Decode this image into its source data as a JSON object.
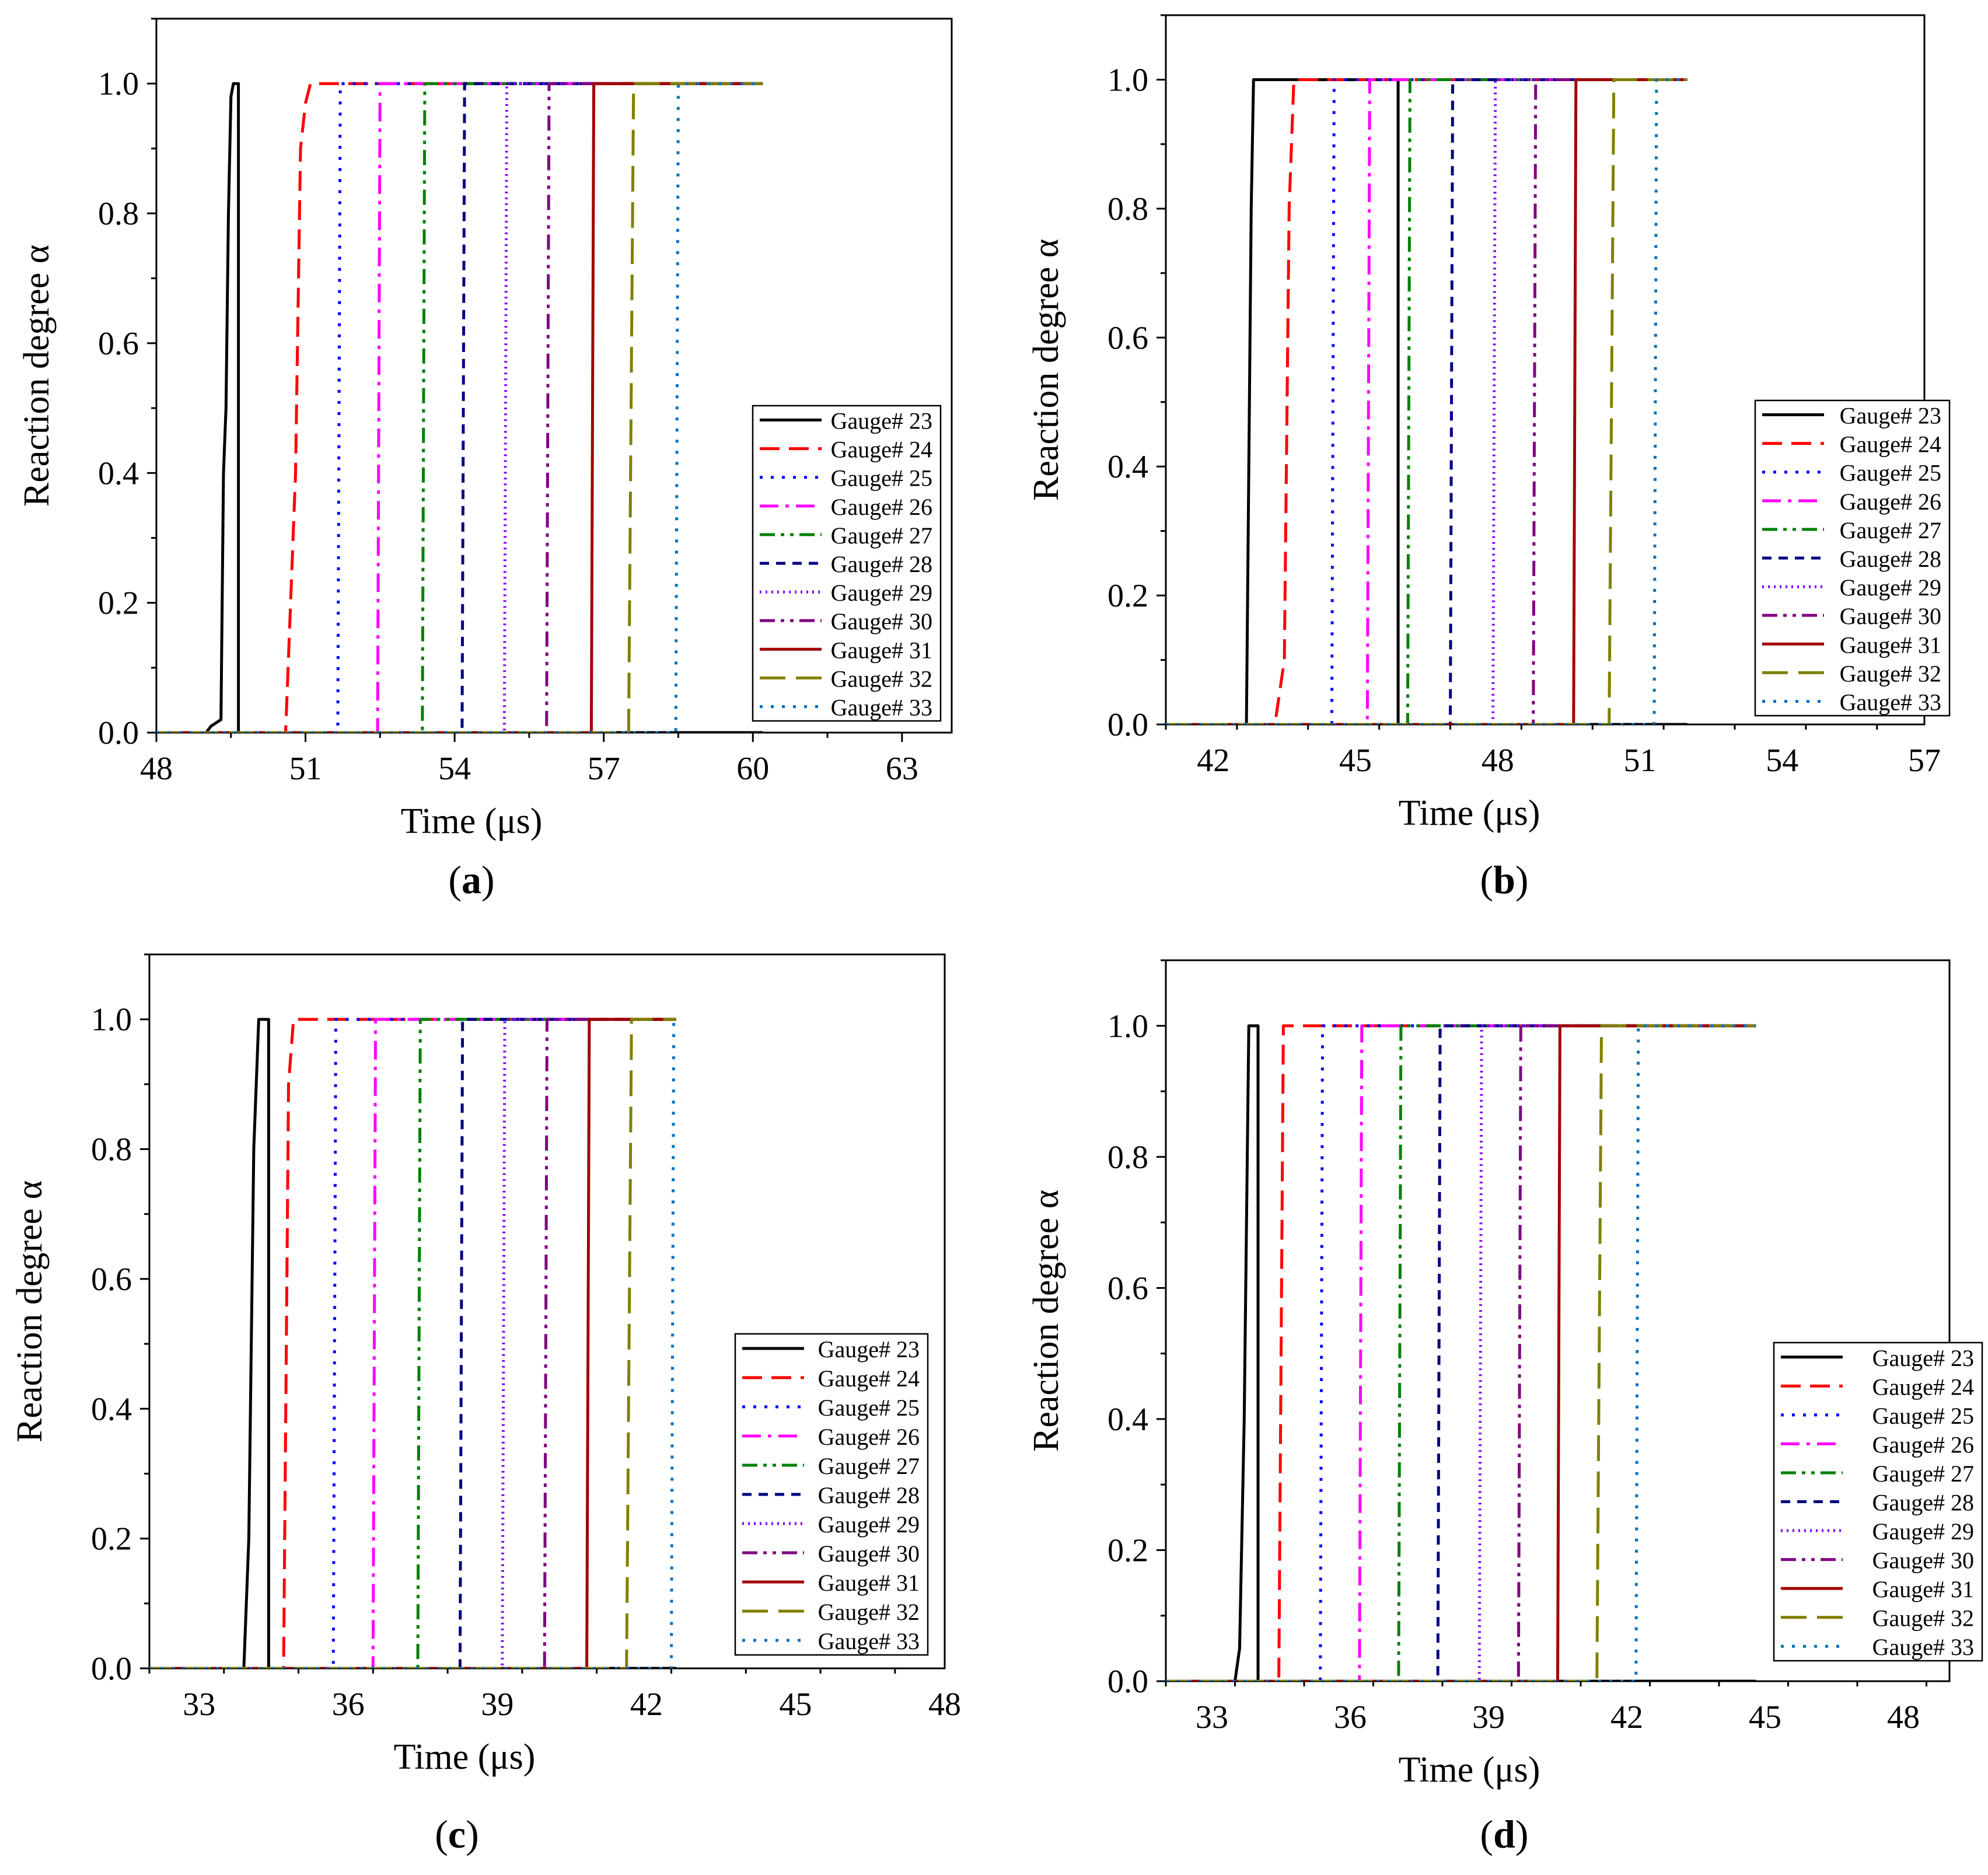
{
  "figure": {
    "legend_labels": [
      "Gauge# 23",
      "Gauge# 24",
      "Gauge# 25",
      "Gauge# 26",
      "Gauge# 27",
      "Gauge# 28",
      "Gauge# 29",
      "Gauge# 30",
      "Gauge# 31",
      "Gauge# 32",
      "Gauge# 33"
    ],
    "series_colors": [
      "#000000",
      "#ff0000",
      "#0000ff",
      "#ff00ff",
      "#008000",
      "#000080",
      "#8000ff",
      "#800080",
      "#a00000",
      "#808000",
      "#0070c0"
    ],
    "series_styles": [
      "solid",
      "dash",
      "dot",
      "dashdot",
      "dashdotdot",
      "shortdash",
      "shortdot",
      "dashdotdot",
      "solid",
      "longdash",
      "dot"
    ]
  },
  "chart_data": [
    {
      "type": "line",
      "panel_label": "(a)",
      "xlabel": "Time (μs)",
      "ylabel": "Reaction degree α",
      "xlim": [
        48,
        64
      ],
      "ylim": [
        0,
        1.1
      ],
      "xticks": [
        48,
        51,
        54,
        57,
        60,
        63
      ],
      "yticks": [
        0.0,
        0.2,
        0.4,
        0.6,
        0.8,
        1.0
      ],
      "tick_labels_x": [
        "48",
        "51",
        "54",
        "57",
        "60",
        "63"
      ],
      "tick_labels_y": [
        "0.0",
        "0.2",
        "0.4",
        "0.6",
        "0.8",
        "1.0"
      ],
      "x_end": 60.2,
      "series": [
        {
          "name": "Gauge# 23",
          "x": [
            48.0,
            49.0,
            49.1,
            49.3,
            49.35,
            49.4,
            49.45,
            49.5,
            49.55,
            49.6,
            49.65,
            49.65,
            60.2
          ],
          "y": [
            0,
            0,
            0.01,
            0.02,
            0.4,
            0.5,
            0.8,
            0.98,
            1.0,
            1.0,
            1.0,
            0,
            0
          ]
        },
        {
          "name": "Gauge# 24",
          "x": [
            48.0,
            50.6,
            50.8,
            50.9,
            51.0,
            51.1,
            60.2
          ],
          "y": [
            0,
            0,
            0.4,
            0.9,
            0.97,
            1.0,
            1.0
          ]
        },
        {
          "name": "Gauge# 25",
          "x": [
            48.0,
            51.65,
            51.7,
            60.2
          ],
          "y": [
            0,
            0,
            1.0,
            1.0
          ]
        },
        {
          "name": "Gauge# 26",
          "x": [
            48.0,
            52.45,
            52.5,
            60.2
          ],
          "y": [
            0,
            0,
            1.0,
            1.0
          ]
        },
        {
          "name": "Gauge# 27",
          "x": [
            48.0,
            53.35,
            53.4,
            60.2
          ],
          "y": [
            0,
            0,
            1.0,
            1.0
          ]
        },
        {
          "name": "Gauge# 28",
          "x": [
            48.0,
            54.15,
            54.2,
            60.2
          ],
          "y": [
            0,
            0,
            1.0,
            1.0
          ]
        },
        {
          "name": "Gauge# 29",
          "x": [
            48.0,
            55.0,
            55.05,
            60.2
          ],
          "y": [
            0,
            0,
            1.0,
            1.0
          ]
        },
        {
          "name": "Gauge# 30",
          "x": [
            48.0,
            55.85,
            55.9,
            60.2
          ],
          "y": [
            0,
            0,
            1.0,
            1.0
          ]
        },
        {
          "name": "Gauge# 31",
          "x": [
            48.0,
            56.75,
            56.8,
            60.2
          ],
          "y": [
            0,
            0,
            1.0,
            1.0
          ]
        },
        {
          "name": "Gauge# 32",
          "x": [
            48.0,
            57.5,
            57.6,
            60.2
          ],
          "y": [
            0,
            0,
            1.0,
            1.0
          ]
        },
        {
          "name": "Gauge# 33",
          "x": [
            48.0,
            58.45,
            58.5,
            60.2
          ],
          "y": [
            0,
            0,
            1.0,
            1.0
          ]
        }
      ]
    },
    {
      "type": "line",
      "panel_label": "(b)",
      "xlabel": "Time (μs)",
      "ylabel": "Reaction degree α",
      "xlim": [
        41,
        57
      ],
      "ylim": [
        0,
        1.1
      ],
      "xticks": [
        42,
        45,
        48,
        51,
        54,
        57
      ],
      "yticks": [
        0.0,
        0.2,
        0.4,
        0.6,
        0.8,
        1.0
      ],
      "tick_labels_x": [
        "42",
        "45",
        "48",
        "51",
        "54",
        "57"
      ],
      "tick_labels_y": [
        "0.0",
        "0.2",
        "0.4",
        "0.6",
        "0.8",
        "1.0"
      ],
      "x_end": 52.0,
      "series": [
        {
          "name": "Gauge# 23",
          "x": [
            41.0,
            42.7,
            42.75,
            42.8,
            42.85,
            45.9,
            45.9,
            52.0
          ],
          "y": [
            0,
            0,
            0.4,
            0.8,
            1.0,
            1.0,
            0,
            0
          ]
        },
        {
          "name": "Gauge# 24",
          "x": [
            41.0,
            43.3,
            43.5,
            43.6,
            43.7,
            52.0
          ],
          "y": [
            0,
            0,
            0.1,
            0.8,
            1.0,
            1.0
          ]
        },
        {
          "name": "Gauge# 25",
          "x": [
            41.0,
            44.5,
            44.55,
            52.0
          ],
          "y": [
            0,
            0,
            1.0,
            1.0
          ]
        },
        {
          "name": "Gauge# 26",
          "x": [
            41.0,
            45.25,
            45.3,
            52.0
          ],
          "y": [
            0,
            0,
            1.0,
            1.0
          ]
        },
        {
          "name": "Gauge# 27",
          "x": [
            41.0,
            46.1,
            46.15,
            52.0
          ],
          "y": [
            0,
            0,
            1.0,
            1.0
          ]
        },
        {
          "name": "Gauge# 28",
          "x": [
            41.0,
            47.0,
            47.05,
            52.0
          ],
          "y": [
            0,
            0,
            1.0,
            1.0
          ]
        },
        {
          "name": "Gauge# 29",
          "x": [
            41.0,
            47.9,
            47.95,
            52.0
          ],
          "y": [
            0,
            0,
            1.0,
            1.0
          ]
        },
        {
          "name": "Gauge# 30",
          "x": [
            41.0,
            48.75,
            48.8,
            52.0
          ],
          "y": [
            0,
            0,
            1.0,
            1.0
          ]
        },
        {
          "name": "Gauge# 31",
          "x": [
            41.0,
            49.6,
            49.65,
            52.0
          ],
          "y": [
            0,
            0,
            1.0,
            1.0
          ]
        },
        {
          "name": "Gauge# 32",
          "x": [
            41.0,
            50.35,
            50.45,
            52.0
          ],
          "y": [
            0,
            0,
            1.0,
            1.0
          ]
        },
        {
          "name": "Gauge# 33",
          "x": [
            41.0,
            51.3,
            51.35,
            52.0
          ],
          "y": [
            0,
            0,
            1.0,
            1.0
          ]
        }
      ]
    },
    {
      "type": "line",
      "panel_label": "(c)",
      "xlabel": "Time (μs)",
      "ylabel": "Reaction degree α",
      "xlim": [
        32,
        48
      ],
      "ylim": [
        0,
        1.1
      ],
      "xticks": [
        33,
        36,
        39,
        42,
        45,
        48
      ],
      "yticks": [
        0.0,
        0.2,
        0.4,
        0.6,
        0.8,
        1.0
      ],
      "tick_labels_x": [
        "33",
        "36",
        "39",
        "42",
        "45",
        "48"
      ],
      "tick_labels_y": [
        "0.0",
        "0.2",
        "0.4",
        "0.6",
        "0.8",
        "1.0"
      ],
      "x_end": 42.6,
      "series": [
        {
          "name": "Gauge# 23",
          "x": [
            32.0,
            33.9,
            34.0,
            34.1,
            34.2,
            34.4,
            34.4,
            42.6
          ],
          "y": [
            0,
            0,
            0.2,
            0.8,
            1.0,
            1.0,
            0,
            0
          ]
        },
        {
          "name": "Gauge# 24",
          "x": [
            32.0,
            34.7,
            34.8,
            34.9,
            42.6
          ],
          "y": [
            0,
            0,
            0.9,
            1.0,
            1.0
          ]
        },
        {
          "name": "Gauge# 25",
          "x": [
            32.0,
            35.7,
            35.75,
            42.6
          ],
          "y": [
            0,
            0,
            1.0,
            1.0
          ]
        },
        {
          "name": "Gauge# 26",
          "x": [
            32.0,
            36.5,
            36.55,
            42.6
          ],
          "y": [
            0,
            0,
            1.0,
            1.0
          ]
        },
        {
          "name": "Gauge# 27",
          "x": [
            32.0,
            37.4,
            37.45,
            42.6
          ],
          "y": [
            0,
            0,
            1.0,
            1.0
          ]
        },
        {
          "name": "Gauge# 28",
          "x": [
            32.0,
            38.25,
            38.3,
            42.6
          ],
          "y": [
            0,
            0,
            1.0,
            1.0
          ]
        },
        {
          "name": "Gauge# 29",
          "x": [
            32.0,
            39.1,
            39.15,
            42.6
          ],
          "y": [
            0,
            0,
            1.0,
            1.0
          ]
        },
        {
          "name": "Gauge# 30",
          "x": [
            32.0,
            39.95,
            40.0,
            42.6
          ],
          "y": [
            0,
            0,
            1.0,
            1.0
          ]
        },
        {
          "name": "Gauge# 31",
          "x": [
            32.0,
            40.8,
            40.85,
            42.6
          ],
          "y": [
            0,
            0,
            1.0,
            1.0
          ]
        },
        {
          "name": "Gauge# 32",
          "x": [
            32.0,
            41.6,
            41.7,
            42.6
          ],
          "y": [
            0,
            0,
            1.0,
            1.0
          ]
        },
        {
          "name": "Gauge# 33",
          "x": [
            32.0,
            42.5,
            42.55,
            42.6
          ],
          "y": [
            0,
            0,
            1.0,
            1.0
          ]
        }
      ]
    },
    {
      "type": "line",
      "panel_label": "(d)",
      "xlabel": "Time (μs)",
      "ylabel": "Reaction degree α",
      "xlim": [
        32,
        49
      ],
      "ylim": [
        0,
        1.1
      ],
      "xticks": [
        33,
        36,
        39,
        42,
        45,
        48
      ],
      "yticks": [
        0.0,
        0.2,
        0.4,
        0.6,
        0.8,
        1.0
      ],
      "tick_labels_x": [
        "33",
        "36",
        "39",
        "42",
        "45",
        "48"
      ],
      "tick_labels_y": [
        "0.0",
        "0.2",
        "0.4",
        "0.6",
        "0.8",
        "1.0"
      ],
      "x_end": 44.8,
      "series": [
        {
          "name": "Gauge# 23",
          "x": [
            32.0,
            33.5,
            33.6,
            33.7,
            33.8,
            34.0,
            34.0,
            44.8
          ],
          "y": [
            0,
            0,
            0.05,
            0.4,
            1.0,
            1.0,
            0,
            0
          ]
        },
        {
          "name": "Gauge# 24",
          "x": [
            32.0,
            34.45,
            34.55,
            44.8
          ],
          "y": [
            0,
            0,
            1.0,
            1.0
          ]
        },
        {
          "name": "Gauge# 25",
          "x": [
            32.0,
            35.35,
            35.4,
            44.8
          ],
          "y": [
            0,
            0,
            1.0,
            1.0
          ]
        },
        {
          "name": "Gauge# 26",
          "x": [
            32.0,
            36.2,
            36.25,
            44.8
          ],
          "y": [
            0,
            0,
            1.0,
            1.0
          ]
        },
        {
          "name": "Gauge# 27",
          "x": [
            32.0,
            37.05,
            37.1,
            44.8
          ],
          "y": [
            0,
            0,
            1.0,
            1.0
          ]
        },
        {
          "name": "Gauge# 28",
          "x": [
            32.0,
            37.9,
            37.95,
            44.8
          ],
          "y": [
            0,
            0,
            1.0,
            1.0
          ]
        },
        {
          "name": "Gauge# 29",
          "x": [
            32.0,
            38.8,
            38.85,
            44.8
          ],
          "y": [
            0,
            0,
            1.0,
            1.0
          ]
        },
        {
          "name": "Gauge# 30",
          "x": [
            32.0,
            39.65,
            39.7,
            44.8
          ],
          "y": [
            0,
            0,
            1.0,
            1.0
          ]
        },
        {
          "name": "Gauge# 31",
          "x": [
            32.0,
            40.5,
            40.55,
            44.8
          ],
          "y": [
            0,
            0,
            1.0,
            1.0
          ]
        },
        {
          "name": "Gauge# 32",
          "x": [
            32.0,
            41.35,
            41.45,
            44.8
          ],
          "y": [
            0,
            0,
            1.0,
            1.0
          ]
        },
        {
          "name": "Gauge# 33",
          "x": [
            32.0,
            42.2,
            42.25,
            44.8
          ],
          "y": [
            0,
            0,
            1.0,
            1.0
          ]
        }
      ]
    }
  ]
}
